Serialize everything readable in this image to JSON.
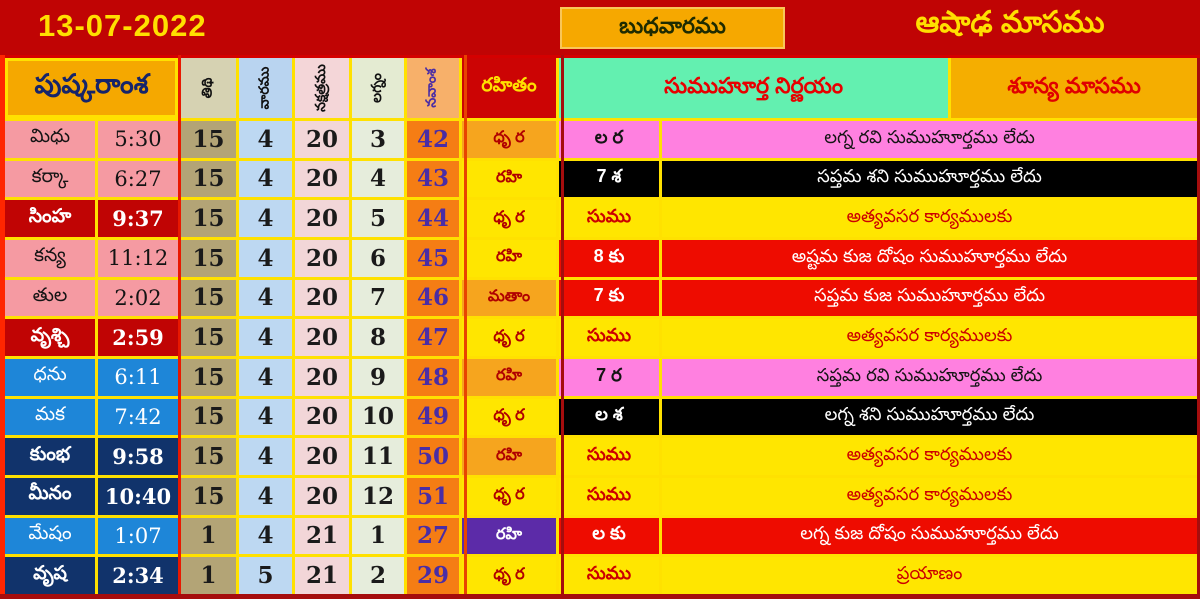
{
  "banner": {
    "date": "13-07-2022",
    "weekday": "బుధవారము",
    "month": "ఆషాఢ మాసము"
  },
  "headers": {
    "pushkaramsa": "పుష్కరాంశ",
    "tithi": "తిథి",
    "vara": "వారము",
    "nakshatra": "నక్షత్రము",
    "lagna": "లగ్నం",
    "navamsa": "నవాంశ",
    "rahitam": "రహితం",
    "muhurta": "సుముహూర్త నిర్ణయం",
    "shunya": "శూన్య మాసము"
  },
  "rows": [
    {
      "rashi": "మిధు",
      "time": "5:30",
      "tithi": "15",
      "vara": "4",
      "nakshatra": "20",
      "lagna": "3",
      "navamsa": "42",
      "rahitam": "ధృ ర",
      "rahitam_style": "orange",
      "label": "ల ర",
      "text": "లగ్న రవి సుముహూర్తము లేదు",
      "row_style": "pink",
      "name_style": "pink"
    },
    {
      "rashi": "కర్కా",
      "time": "6:27",
      "tithi": "15",
      "vara": "4",
      "nakshatra": "20",
      "lagna": "4",
      "navamsa": "43",
      "rahitam": "రహి",
      "rahitam_style": "yellow",
      "label": "7 శ",
      "text": "సప్తమ శని సుముహూర్తము లేదు",
      "row_style": "black",
      "name_style": "pink"
    },
    {
      "rashi": "సింహ",
      "time": "9:37",
      "tithi": "15",
      "vara": "4",
      "nakshatra": "20",
      "lagna": "5",
      "navamsa": "44",
      "rahitam": "ధృ ర",
      "rahitam_style": "yellow",
      "label": "సుము",
      "text": "అత్యవసర కార్యములకు",
      "row_style": "yellow",
      "name_style": "darkred"
    },
    {
      "rashi": "కన్య",
      "time": "11:12",
      "tithi": "15",
      "vara": "4",
      "nakshatra": "20",
      "lagna": "6",
      "navamsa": "45",
      "rahitam": "రహి",
      "rahitam_style": "yellow",
      "label": "8 కు",
      "text": "అష్టమ కుజ దోషం సుముహూర్తము లేదు",
      "row_style": "red",
      "name_style": "pink"
    },
    {
      "rashi": "తుల",
      "time": "2:02",
      "tithi": "15",
      "vara": "4",
      "nakshatra": "20",
      "lagna": "7",
      "navamsa": "46",
      "rahitam": "మతాం",
      "rahitam_style": "orange",
      "label": "7 కు",
      "text": "సప్తమ కుజ సుముహూర్తము లేదు",
      "row_style": "red",
      "name_style": "pink"
    },
    {
      "rashi": "వృశ్చి",
      "time": "2:59",
      "tithi": "15",
      "vara": "4",
      "nakshatra": "20",
      "lagna": "8",
      "navamsa": "47",
      "rahitam": "ధృ ర",
      "rahitam_style": "yellow",
      "label": "సుము",
      "text": "అత్యవసర కార్యములకు",
      "row_style": "yellow",
      "name_style": "darkred"
    },
    {
      "rashi": "ధను",
      "time": "6:11",
      "tithi": "15",
      "vara": "4",
      "nakshatra": "20",
      "lagna": "9",
      "navamsa": "48",
      "rahitam": "రహి",
      "rahitam_style": "orange",
      "label": "7 ర",
      "text": "సప్తమ రవి సుముహూర్తము లేదు",
      "row_style": "pink",
      "name_style": "blue"
    },
    {
      "rashi": "మక",
      "time": "7:42",
      "tithi": "15",
      "vara": "4",
      "nakshatra": "20",
      "lagna": "10",
      "navamsa": "49",
      "rahitam": "ధృ ర",
      "rahitam_style": "yellow",
      "label": "ల శ",
      "text": "లగ్న శని సుముహూర్తము లేదు",
      "row_style": "black",
      "name_style": "blue"
    },
    {
      "rashi": "కుంభ",
      "time": "9:58",
      "tithi": "15",
      "vara": "4",
      "nakshatra": "20",
      "lagna": "11",
      "navamsa": "50",
      "rahitam": "రహి",
      "rahitam_style": "orange",
      "label": "సుము",
      "text": "అత్యవసర కార్యములకు",
      "row_style": "yellow",
      "name_style": "navy"
    },
    {
      "rashi": "మీనం",
      "time": "10:40",
      "tithi": "15",
      "vara": "4",
      "nakshatra": "20",
      "lagna": "12",
      "navamsa": "51",
      "rahitam": "ధృ ర",
      "rahitam_style": "yellow",
      "label": "సుము",
      "text": "అత్యవసర కార్యములకు",
      "row_style": "yellow",
      "name_style": "navy"
    },
    {
      "rashi": "మేషం",
      "time": "1:07",
      "tithi": "1",
      "vara": "4",
      "nakshatra": "21",
      "lagna": "1",
      "navamsa": "27",
      "rahitam": "రహి",
      "rahitam_style": "purple",
      "label": "ల కు",
      "text": "లగ్న కుజ దోషం సుముహూర్తము లేదు",
      "row_style": "red",
      "name_style": "blue"
    },
    {
      "rashi": "వృష",
      "time": "2:34",
      "tithi": "1",
      "vara": "5",
      "nakshatra": "21",
      "lagna": "2",
      "navamsa": "29",
      "rahitam": "ధృ ర",
      "rahitam_style": "yellow",
      "label": "సుము",
      "text": "ప్రయాణం",
      "row_style": "yellow",
      "name_style": "navy"
    }
  ],
  "colors": {
    "banner_red": "#c00404",
    "grid_yellow": "#ffe100",
    "header_orange": "#f5a800",
    "muhurta_green": "#63f0b0",
    "shunya_orange": "#f5ae00",
    "pink_row": "#ff80e0",
    "black_row": "#000000",
    "yellow_row": "#ffe600",
    "red_row": "#ee0c00",
    "purple_cell": "#5c2ba8",
    "navamsa_orange": "#f57d14",
    "zodiac_pink": "#f59aa2",
    "zodiac_blue": "#1e86d8",
    "zodiac_navy": "#11336b"
  }
}
